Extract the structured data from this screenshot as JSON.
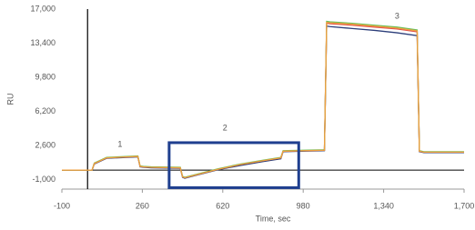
{
  "chart_data": {
    "type": "line",
    "x_label": "Time, sec",
    "y_label": "RU",
    "xlim": [
      -100,
      1700
    ],
    "ylim": [
      -2000,
      17000
    ],
    "xticks": [
      -100,
      260,
      620,
      980,
      {
        "value": 1340,
        "label": "1,340"
      },
      {
        "value": 1700,
        "label": "1,700"
      }
    ],
    "yticks": [
      {
        "value": -1000,
        "label": "-1,000"
      },
      {
        "value": 2600,
        "label": "2,600"
      },
      {
        "value": 6200,
        "label": "6,200"
      },
      {
        "value": 9800,
        "label": "9,800"
      },
      {
        "value": 13400,
        "label": "13,400"
      },
      {
        "value": 17000,
        "label": "17,000"
      }
    ],
    "hline": 0,
    "vline": 15,
    "x": [
      -100,
      35,
      45,
      100,
      240,
      250,
      265,
      300,
      430,
      440,
      450,
      500,
      600,
      700,
      800,
      880,
      890,
      1075,
      1085,
      1100,
      1200,
      1300,
      1400,
      1490,
      1500,
      1520,
      1600,
      1700
    ],
    "series": [
      {
        "color": "#2c3e7a",
        "values": [
          0,
          0,
          650,
          1250,
          1400,
          350,
          300,
          250,
          200,
          -750,
          -850,
          -550,
          50,
          500,
          900,
          1200,
          1950,
          2050,
          15200,
          15150,
          14950,
          14750,
          14500,
          14200,
          1950,
          1850,
          1850,
          1850
        ]
      },
      {
        "color": "#e0504a",
        "values": [
          0,
          0,
          700,
          1300,
          1450,
          400,
          350,
          300,
          250,
          -700,
          -800,
          -500,
          100,
          600,
          1000,
          1300,
          2000,
          2100,
          15500,
          15450,
          15300,
          15100,
          14900,
          14600,
          2000,
          1900,
          1900,
          1900
        ]
      },
      {
        "color": "#6bbf59",
        "values": [
          0,
          0,
          750,
          1350,
          1500,
          450,
          400,
          350,
          300,
          -650,
          -750,
          -450,
          150,
          650,
          1050,
          1350,
          2050,
          2150,
          15700,
          15650,
          15500,
          15300,
          15100,
          14800,
          2050,
          1950,
          1950,
          1950
        ]
      },
      {
        "color": "#f0a040",
        "values": [
          0,
          0,
          700,
          1300,
          1450,
          400,
          350,
          300,
          250,
          -700,
          -800,
          -500,
          100,
          600,
          1000,
          1300,
          2000,
          2100,
          15600,
          15550,
          15400,
          15200,
          15000,
          14700,
          2000,
          1900,
          1900,
          1900
        ]
      }
    ],
    "annotations": [
      {
        "text": "1",
        "x": 160,
        "y": 2700
      },
      {
        "text": "2",
        "x": 630,
        "y": 4400
      },
      {
        "text": "3",
        "x": 1400,
        "y": 16200
      }
    ],
    "highlight": {
      "xlim": [
        380,
        960
      ],
      "ylim": [
        -1850,
        2900
      ],
      "color": "#1f3f8f"
    }
  }
}
